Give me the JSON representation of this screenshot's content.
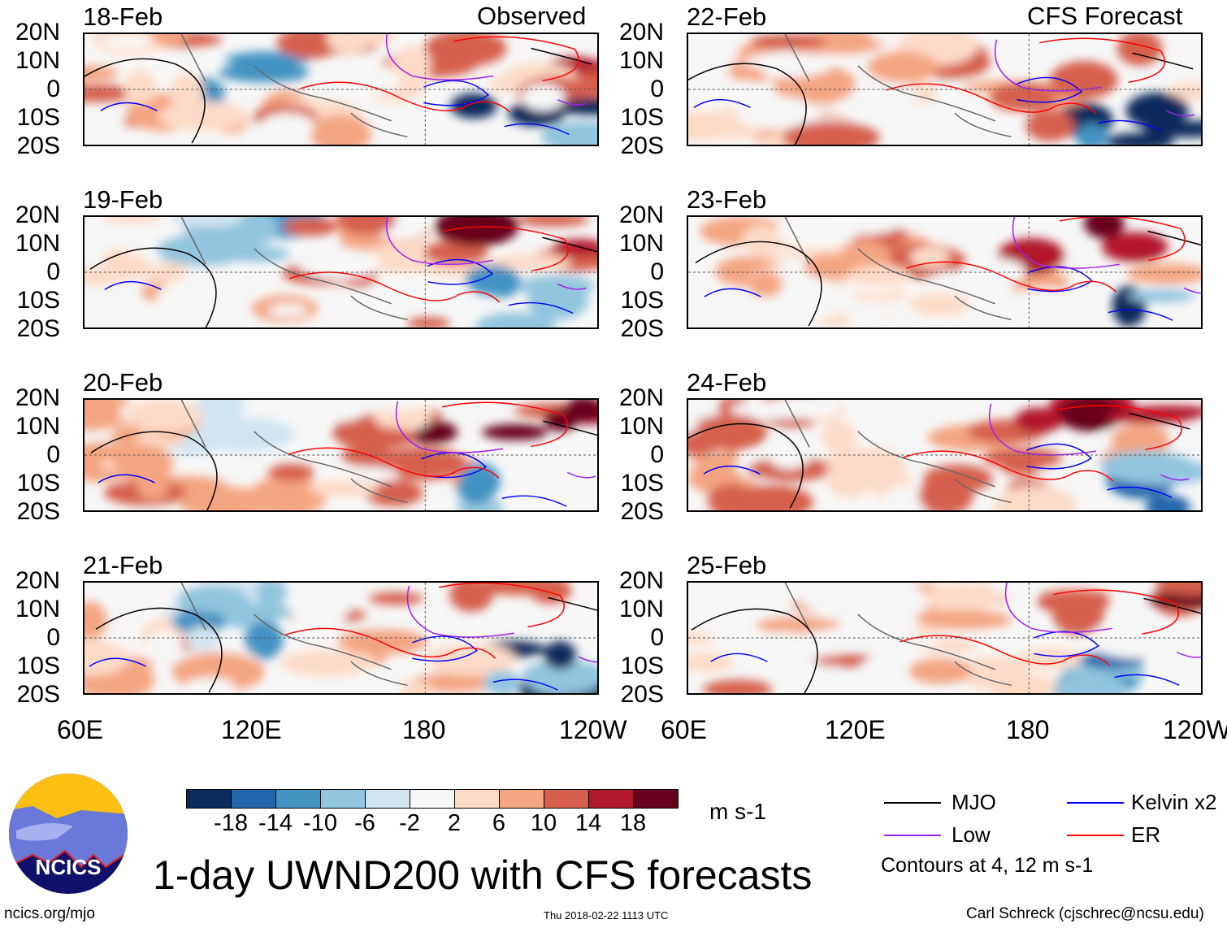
{
  "header": {
    "left_label": "Observed",
    "right_label": "CFS Forecast"
  },
  "panels": [
    {
      "date": "18-Feb",
      "column": "Observed"
    },
    {
      "date": "19-Feb",
      "column": "Observed"
    },
    {
      "date": "20-Feb",
      "column": "Observed"
    },
    {
      "date": "21-Feb",
      "column": "Observed"
    },
    {
      "date": "22-Feb",
      "column": "CFS Forecast"
    },
    {
      "date": "23-Feb",
      "column": "CFS Forecast"
    },
    {
      "date": "24-Feb",
      "column": "CFS Forecast"
    },
    {
      "date": "25-Feb",
      "column": "CFS Forecast"
    }
  ],
  "lat_ticks": [
    "20N",
    "10N",
    "0",
    "10S",
    "20S"
  ],
  "lon_ticks": [
    "60E",
    "120E",
    "180",
    "120W"
  ],
  "colorbar": {
    "labels": [
      "-18",
      "-14",
      "-10",
      "-6",
      "-2",
      "2",
      "6",
      "10",
      "14",
      "18"
    ],
    "colors": [
      "#0b2c5c",
      "#2166ac",
      "#4393c3",
      "#92c5de",
      "#d1e5f0",
      "#f7f7f7",
      "#fddbc7",
      "#f4a582",
      "#d6604d",
      "#b2182b",
      "#67001f"
    ],
    "units": "m s-1"
  },
  "legend": {
    "items": [
      {
        "label": "MJO",
        "color": "#000000"
      },
      {
        "label": "Kelvin x2",
        "color": "#0000ff"
      },
      {
        "label": "Low",
        "color": "#a020f0"
      },
      {
        "label": "ER",
        "color": "#ff0000"
      }
    ],
    "note": "Contours at 4, 12 m s-1"
  },
  "title": "1-day UWND200 with CFS forecasts",
  "logo_text": "NCICS",
  "footer": {
    "url": "ncics.org/mjo",
    "timestamp": "Thu 2018-02-22 1113 UTC",
    "credit": "Carl Schreck (cjschrec@ncsu.edu)"
  }
}
